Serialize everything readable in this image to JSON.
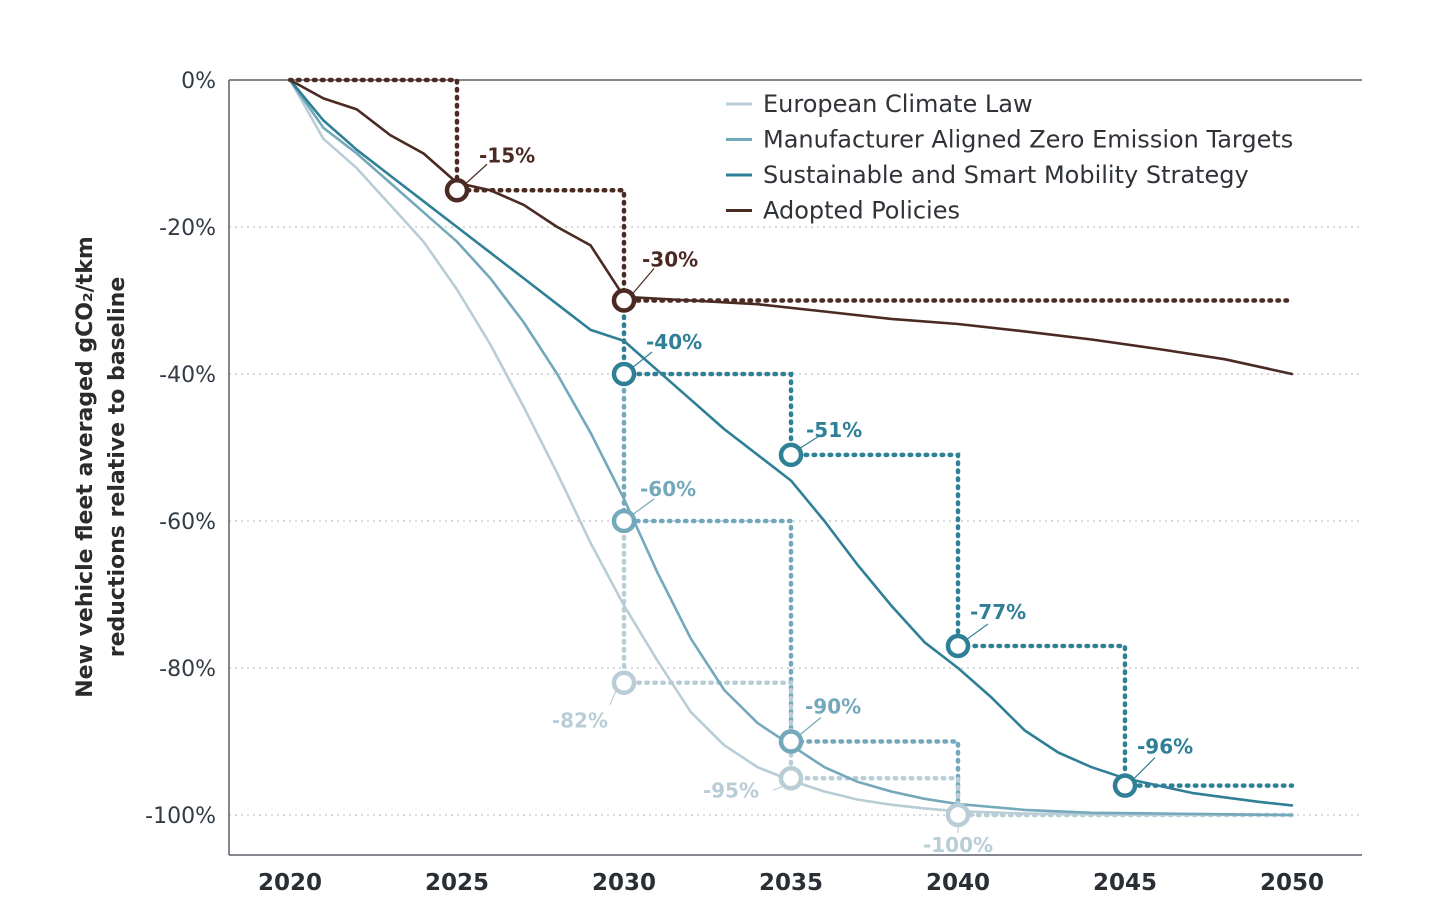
{
  "chart_data": {
    "type": "line",
    "xlabel": "",
    "ylabel_lines": [
      "New vehicle fleet averaged gCO₂/tkm",
      "reductions relative to baseline"
    ],
    "xlim": [
      2018.2,
      2050.8
    ],
    "ylim": [
      -105,
      0
    ],
    "x_ticks": [
      2020,
      2025,
      2030,
      2035,
      2040,
      2045,
      2050
    ],
    "x_tick_labels": [
      "2020",
      "2025",
      "2030",
      "2035",
      "2040",
      "2045",
      "2050"
    ],
    "y_ticks": [
      0,
      -20,
      -40,
      -60,
      -80,
      -100
    ],
    "y_tick_labels": [
      "0%",
      "-20%",
      "-40%",
      "-60%",
      "-80%",
      "-100%"
    ],
    "grid": "horizontal dotted",
    "legend_position": "top-right",
    "series": [
      {
        "name": "European Climate Law",
        "color": "#b9cdd6",
        "x": [
          2020,
          2021,
          2022,
          2023,
          2024,
          2025,
          2026,
          2027,
          2028,
          2029,
          2030,
          2031,
          2032,
          2033,
          2034,
          2035,
          2036,
          2037,
          2038,
          2039,
          2040,
          2042,
          2044,
          2046,
          2048,
          2050
        ],
        "y": [
          0,
          -8,
          -12,
          -17,
          -22,
          -28.5,
          -36,
          -44.5,
          -53.5,
          -63,
          -71.5,
          -79,
          -86,
          -90.5,
          -93.5,
          -95.3,
          -96.8,
          -97.9,
          -98.6,
          -99.1,
          -99.5,
          -99.8,
          -99.9,
          -100,
          -100,
          -100
        ]
      },
      {
        "name": "Manufacturer Aligned Zero Emission Targets",
        "color": "#74a8bb",
        "x": [
          2020,
          2021,
          2022,
          2023,
          2024,
          2025,
          2026,
          2027,
          2028,
          2029,
          2030,
          2031,
          2032,
          2033,
          2034,
          2035,
          2036,
          2037,
          2038,
          2039,
          2040,
          2042,
          2044,
          2046,
          2048,
          2050
        ],
        "y": [
          0,
          -6.5,
          -10,
          -14,
          -18,
          -22,
          -27,
          -33,
          -40,
          -48,
          -57,
          -67,
          -76,
          -83,
          -87.5,
          -90.5,
          -93.5,
          -95.5,
          -96.8,
          -97.8,
          -98.5,
          -99.3,
          -99.7,
          -99.8,
          -99.9,
          -100
        ]
      },
      {
        "name": "Sustainable and Smart Mobility Strategy",
        "color": "#2f7f96",
        "x": [
          2020,
          2021,
          2022,
          2023,
          2024,
          2025,
          2026,
          2027,
          2028,
          2029,
          2030,
          2031,
          2032,
          2033,
          2034,
          2035,
          2036,
          2037,
          2038,
          2039,
          2040,
          2041,
          2042,
          2043,
          2044,
          2045,
          2046,
          2047,
          2048,
          2049,
          2050
        ],
        "y": [
          0,
          -5.5,
          -9.5,
          -13,
          -16.5,
          -20,
          -23.5,
          -27,
          -30.5,
          -34,
          -35.5,
          -39.5,
          -43.5,
          -47.5,
          -51,
          -54.5,
          -60,
          -66,
          -71.5,
          -76.5,
          -80,
          -84,
          -88.5,
          -91.5,
          -93.5,
          -95,
          -96,
          -97,
          -97.6,
          -98.2,
          -98.7
        ]
      },
      {
        "name": "Adopted Policies",
        "color": "#4a2a22",
        "x": [
          2020,
          2021,
          2022,
          2023,
          2024,
          2025,
          2026,
          2027,
          2028,
          2029,
          2030,
          2032,
          2034,
          2036,
          2038,
          2040,
          2042,
          2044,
          2046,
          2048,
          2050
        ],
        "y": [
          0,
          -2.5,
          -4,
          -7.5,
          -10,
          -14,
          -15,
          -17,
          -20,
          -22.5,
          -29.5,
          -30,
          -30.5,
          -31.5,
          -32.5,
          -33.2,
          -34.2,
          -35.3,
          -36.6,
          -38,
          -40
        ]
      }
    ],
    "targets": [
      {
        "series": "Adopted Policies",
        "color": "#4a2a22",
        "points": [
          {
            "x": 2025,
            "y": -15,
            "label": "-15%"
          },
          {
            "x": 2030,
            "y": -30,
            "label": "-30%"
          }
        ],
        "ticks": [
          2025,
          2030
        ],
        "end_x": 2050
      },
      {
        "series": "Sustainable and Smart Mobility Strategy",
        "color": "#2f7f96",
        "points": [
          {
            "x": 2030,
            "y": -40,
            "label": "-40%"
          },
          {
            "x": 2035,
            "y": -51,
            "label": "-51%"
          },
          {
            "x": 2040,
            "y": -77,
            "label": "-77%"
          },
          {
            "x": 2045,
            "y": -96,
            "label": "-96%"
          }
        ],
        "ticks": [
          2030,
          2035,
          2040,
          2045
        ],
        "end_x": 2050
      },
      {
        "series": "Manufacturer Aligned Zero Emission Targets",
        "color": "#74a8bb",
        "points": [
          {
            "x": 2030,
            "y": -60,
            "label": "-60%"
          },
          {
            "x": 2035,
            "y": -90,
            "label": "-90%"
          }
        ],
        "ticks": [
          2030,
          2035,
          2040
        ],
        "end_x": 2040
      },
      {
        "series": "European Climate Law",
        "color": "#b9cdd6",
        "points": [
          {
            "x": 2030,
            "y": -82,
            "label": "-82%"
          },
          {
            "x": 2035,
            "y": -95,
            "label": "-95%"
          },
          {
            "x": 2040,
            "y": -100,
            "label": "-100%"
          }
        ],
        "ticks": [
          2030,
          2035,
          2040
        ],
        "end_x": 2050
      }
    ]
  }
}
